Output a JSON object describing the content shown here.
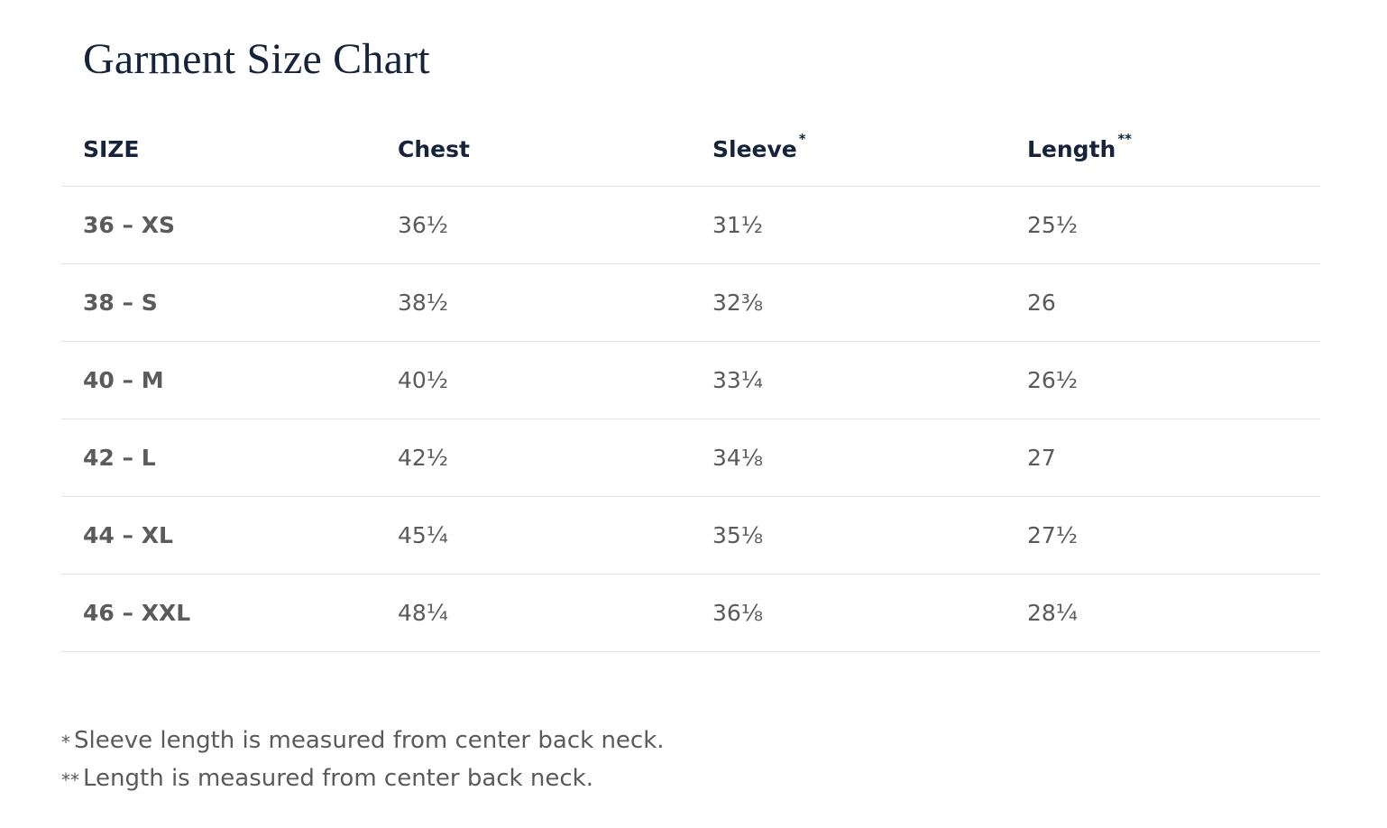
{
  "title": "Garment Size Chart",
  "table": {
    "columns": [
      {
        "label": "SIZE"
      },
      {
        "label": "Chest"
      },
      {
        "label": "Sleeve",
        "note": "*"
      },
      {
        "label": "Length",
        "note": "**"
      }
    ],
    "rows": [
      [
        "36 – XS",
        "36½",
        "31½",
        "25½"
      ],
      [
        "38 – S",
        "38½",
        "32⅜",
        "26"
      ],
      [
        "40 – M",
        "40½",
        "33¼",
        "26½"
      ],
      [
        "42 – L",
        "42½",
        "34⅛",
        "27"
      ],
      [
        "44 – XL",
        "45¼",
        "35⅛",
        "27½"
      ],
      [
        "46 – XXL",
        "48¼",
        "36⅛",
        "28¼"
      ]
    ]
  },
  "footnotes": [
    {
      "marker": "*",
      "text": "Sleeve length is measured from center back neck."
    },
    {
      "marker": "**",
      "text": "Length is measured from center back neck."
    }
  ]
}
